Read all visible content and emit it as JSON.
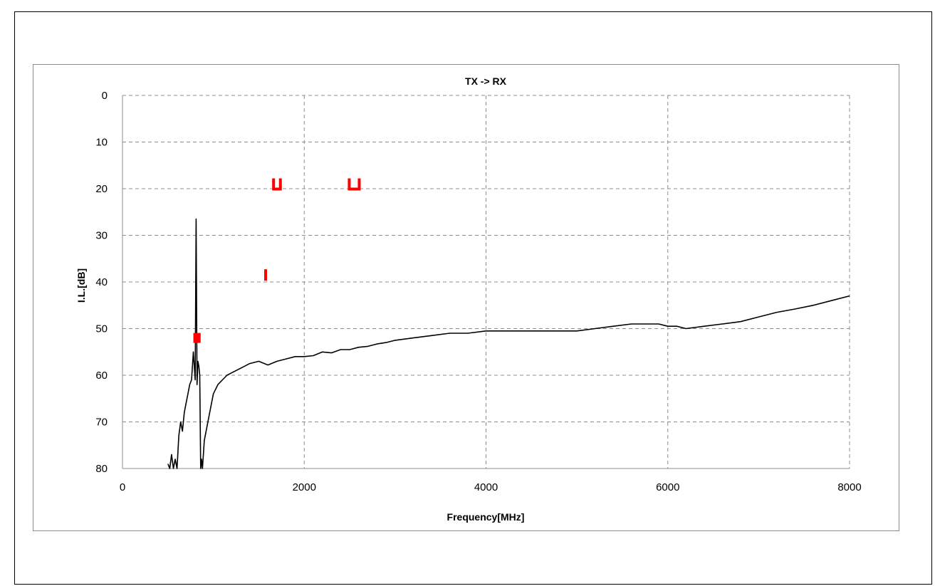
{
  "chart_data": {
    "type": "line",
    "title": "TX -> RX",
    "xlabel": "Frequency[MHz]",
    "ylabel": "I.L.[dB]",
    "xlim": [
      0,
      8000
    ],
    "ylim": [
      0,
      80
    ],
    "y_inverted": true,
    "x_ticks": [
      "0",
      "2000",
      "4000",
      "6000",
      "8000"
    ],
    "y_ticks": [
      "0",
      "10",
      "20",
      "30",
      "40",
      "50",
      "60",
      "70",
      "80"
    ],
    "grid": "dashed",
    "colors": {
      "series": "#000000",
      "markers": "#ff0000",
      "grid": "#8c8c8c"
    },
    "series": [
      {
        "x": [
          500,
          520,
          540,
          560,
          580,
          600,
          620,
          640,
          660,
          680,
          700,
          720,
          740,
          760,
          780,
          800,
          810,
          820,
          830,
          840,
          850,
          860,
          870,
          880,
          900,
          950,
          1000,
          1050,
          1100,
          1150,
          1200,
          1300,
          1400,
          1500,
          1600,
          1700,
          1800,
          1900,
          2000,
          2100,
          2200,
          2300,
          2400,
          2500,
          2600,
          2700,
          2800,
          2900,
          3000,
          3200,
          3400,
          3600,
          3800,
          4000,
          4200,
          4400,
          4600,
          4800,
          5000,
          5200,
          5400,
          5600,
          5800,
          5900,
          6000,
          6100,
          6200,
          6400,
          6600,
          6800,
          7000,
          7200,
          7400,
          7600,
          7800,
          8000
        ],
        "y": [
          79,
          80,
          77,
          80,
          78,
          80,
          73,
          70,
          72,
          68,
          66,
          64,
          62,
          61,
          55,
          61,
          26.5,
          62,
          57,
          58,
          60,
          80,
          78,
          80,
          74,
          69,
          64,
          62,
          61,
          60,
          59.5,
          58.5,
          57.5,
          57,
          57.8,
          57,
          56.5,
          56,
          56,
          55.8,
          55,
          55.2,
          54.5,
          54.5,
          54,
          53.8,
          53.3,
          53,
          52.5,
          52,
          51.5,
          51,
          51,
          50.5,
          50.5,
          50.5,
          50.5,
          50.5,
          50.5,
          50,
          49.5,
          49,
          49,
          49,
          49.5,
          49.5,
          50,
          49.5,
          49,
          48.5,
          47.5,
          46.5,
          45.8,
          45,
          44,
          43
        ]
      }
    ],
    "markers": [
      {
        "x": 820,
        "y": 52,
        "width_mhz": 80,
        "shape": "filled"
      },
      {
        "x": 1700,
        "y": 19,
        "width_mhz": 75,
        "shape": "cup"
      },
      {
        "x": 2550,
        "y": 19,
        "width_mhz": 110,
        "shape": "cup"
      },
      {
        "x": 1575,
        "y": 38.5,
        "width_mhz": 15,
        "shape": "bar"
      }
    ]
  }
}
